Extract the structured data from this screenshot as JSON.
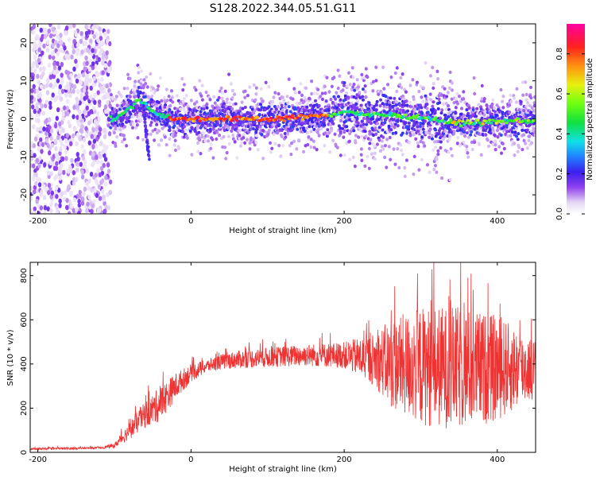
{
  "figure_title": "S128.2022.344.05.51.G11",
  "colors": {
    "snr_line": "#ee3333",
    "frame": "#000000"
  },
  "chart_data": [
    {
      "type": "heatmap",
      "xlabel": "Height of straight line (km)",
      "ylabel": "Frequency (Hz)",
      "xlim": [
        -210,
        450
      ],
      "ylim": [
        -25,
        25
      ],
      "x_ticks": [
        -200,
        0,
        200,
        400
      ],
      "y_ticks": [
        -20,
        -10,
        0,
        10,
        20
      ],
      "colorbar": {
        "label": "Normalized spectral amplitude",
        "range": [
          0,
          0.95
        ],
        "ticks": [
          "0.0",
          "0.2",
          "0.4",
          "0.6",
          "0.8"
        ],
        "colormap": "rainbow (white-purple-blue-cyan-green-yellow-orange-red-magenta)"
      },
      "ridge": {
        "description": "peak frequency vs height",
        "x": [
          -110,
          -100,
          -90,
          -80,
          -70,
          -60,
          -50,
          -40,
          -30,
          -20,
          0,
          50,
          100,
          150,
          180,
          200,
          230,
          260,
          300,
          340,
          380,
          420,
          450
        ],
        "y": [
          0,
          0,
          1,
          3,
          5,
          4,
          2,
          1,
          0.5,
          0,
          0,
          0,
          0,
          0.5,
          1,
          2,
          1,
          1,
          0.5,
          -1,
          -1,
          -0.5,
          -0.5
        ]
      },
      "noise_region_x": [
        -210,
        -105
      ]
    },
    {
      "type": "line",
      "xlabel": "Height of straight line (km)",
      "ylabel": "SNR (10 * v/v)",
      "xlim": [
        -210,
        450
      ],
      "ylim": [
        0,
        860
      ],
      "x_ticks": [
        -200,
        0,
        200,
        400
      ],
      "y_ticks": [
        0,
        200,
        400,
        600,
        800
      ],
      "series": [
        {
          "envelope": {
            "x": [
              -210,
              -120,
              -100,
              -80,
              -60,
              -40,
              -20,
              0,
              20,
              40,
              60,
              100,
              150,
              200,
              240,
              260,
              300,
              350,
              400,
              450
            ],
            "mean": [
              15,
              20,
              30,
              100,
              170,
              220,
              300,
              360,
              390,
              410,
              420,
              430,
              440,
              440,
              420,
              400,
              390,
              380,
              380,
              380
            ],
            "amp": [
              5,
              5,
              10,
              40,
              60,
              80,
              60,
              40,
              30,
              35,
              40,
              45,
              50,
              60,
              120,
              200,
              270,
              280,
              240,
              130
            ]
          }
        }
      ]
    }
  ]
}
